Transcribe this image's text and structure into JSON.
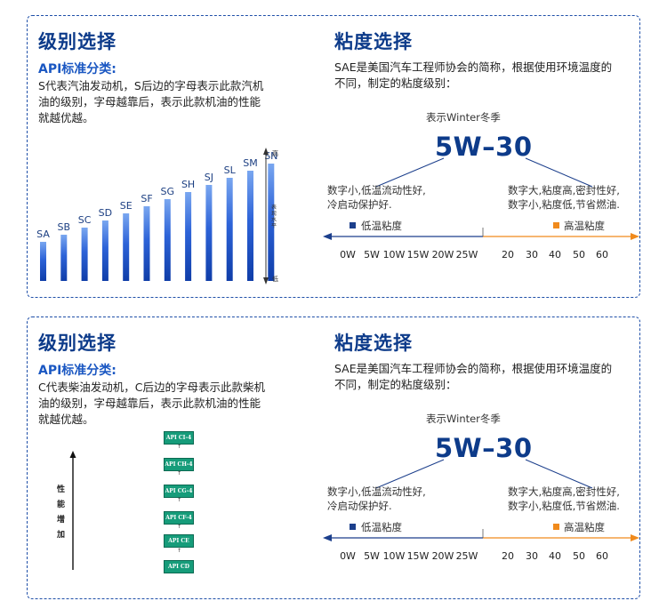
{
  "top": {
    "left_title": "级别选择",
    "api_heading": "API标准分类:",
    "api_desc_lines": [
      "S代表汽油发动机，S后边的字母表示此款汽机",
      "油的级别，字母越靠后，表示此款机油的性能",
      "就越优越。"
    ],
    "grades": [
      {
        "label": "SA",
        "value": 1
      },
      {
        "label": "SB",
        "value": 2
      },
      {
        "label": "SC",
        "value": 3
      },
      {
        "label": "SD",
        "value": 4
      },
      {
        "label": "SE",
        "value": 5
      },
      {
        "label": "SF",
        "value": 6
      },
      {
        "label": "SG",
        "value": 7
      },
      {
        "label": "SH",
        "value": 8
      },
      {
        "label": "SJ",
        "value": 9
      },
      {
        "label": "SL",
        "value": 10
      },
      {
        "label": "SM",
        "value": 11
      },
      {
        "label": "SN",
        "value": 12
      }
    ],
    "scale_high": "高",
    "scale_mid": "表现水平",
    "scale_low": "低"
  },
  "bottom": {
    "left_title": "级别选择",
    "api_heading": "API标准分类:",
    "api_desc_lines": [
      "C代表柴油发动机，C后边的字母表示此款柴机",
      "油的级别，字母越靠后，表示此款机油的性能",
      "就越优越。"
    ],
    "perf_label": "性能增加",
    "boxes": [
      "API CI-4",
      "API CH-4",
      "API CG-4",
      "API CF-4",
      "API CE",
      "API CD"
    ]
  },
  "viscosity": {
    "title": "粘度选择",
    "desc_lines": [
      "SAE是美国汽车工程师协会的简称，根据使用环境温度的",
      "不同，制定的粘度级别："
    ],
    "winter_label": "表示Winter冬季",
    "grade": "5W–30",
    "left_note_lines": [
      "数字小,低温流动性好,",
      "冷启动保护好."
    ],
    "right_note_lines": [
      "数字大,粘度高,密封性好,",
      "数字小,粘度低,节省燃油."
    ],
    "low_legend": "低温粘度",
    "high_legend": "高温粘度",
    "low_ticks": [
      "0W",
      "5W",
      "10W",
      "15W",
      "20W",
      "25W"
    ],
    "high_ticks": [
      "20",
      "30",
      "40",
      "50",
      "60"
    ],
    "colors": {
      "low": "#1c3f8c",
      "high": "#f08a1c"
    }
  }
}
